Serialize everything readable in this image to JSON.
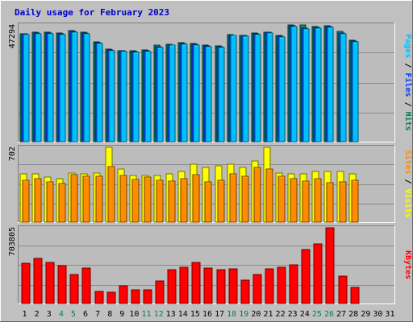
{
  "chart_data": {
    "type": "bar",
    "title": "Daily usage for February 2023",
    "colors": {
      "frame_bg": "#c0c0c0",
      "plot_bg": "#bcbcbc",
      "gridline": "#8a8a8a",
      "title_text": "#0000cc",
      "hits": "#00805c",
      "files": "#0040ff",
      "pages": "#00c0ff",
      "visits": "#ffff00",
      "sites": "#ff8c00",
      "kbytes": "#ff0000",
      "weekend_tick": "#00805c",
      "weekday_tick": "#000000"
    },
    "x_ticks": [
      "1",
      "2",
      "3",
      "4",
      "5",
      "6",
      "7",
      "8",
      "9",
      "10",
      "11",
      "12",
      "13",
      "14",
      "15",
      "16",
      "17",
      "18",
      "19",
      "20",
      "21",
      "22",
      "23",
      "24",
      "25",
      "26",
      "27",
      "28",
      "29",
      "30",
      "31"
    ],
    "weekend_days": [
      4,
      5,
      11,
      12,
      18,
      19,
      25,
      26
    ],
    "panels": [
      {
        "name": "hits_files_pages",
        "ymax_label": "47294",
        "ymax": 47294,
        "side_labels": [
          {
            "text": "Pages",
            "color_key": "pages"
          },
          {
            "text": " / ",
            "color_key": "weekday_tick"
          },
          {
            "text": "Files",
            "color_key": "files"
          },
          {
            "text": " / ",
            "color_key": "weekday_tick"
          },
          {
            "text": "Hits",
            "color_key": "hits"
          }
        ],
        "series": [
          {
            "name": "Hits",
            "color_key": "hits",
            "values": [
              43800,
              44300,
              44200,
              44000,
              44900,
              44300,
              40500,
              37600,
              37000,
              36700,
              37200,
              39300,
              39600,
              40100,
              39900,
              39200,
              38800,
              43500,
              43200,
              43900,
              44500,
              43000,
              47300,
              47294,
              46600,
              47100,
              44600,
              41200
            ]
          },
          {
            "name": "Files",
            "color_key": "files",
            "values": [
              43600,
              44000,
              43900,
              43800,
              44600,
              44000,
              40200,
              37300,
              36700,
              36400,
              36900,
              38500,
              39300,
              39800,
              39600,
              38900,
              38500,
              43200,
              42900,
              43600,
              44200,
              42700,
              46900,
              45900,
              46300,
              46700,
              44100,
              40800
            ]
          },
          {
            "name": "Pages",
            "color_key": "pages",
            "values": [
              43300,
              43700,
              43600,
              43500,
              44300,
              43700,
              39900,
              37000,
              36400,
              36100,
              36600,
              38200,
              39000,
              39500,
              39300,
              38600,
              38200,
              42900,
              42600,
              43300,
              43900,
              42400,
              46600,
              45600,
              46000,
              46400,
              43800,
              40500
            ]
          }
        ]
      },
      {
        "name": "visits_sites",
        "ymax_label": "702",
        "ymax": 702,
        "side_labels": [
          {
            "text": "Sites",
            "color_key": "sites"
          },
          {
            "text": " / ",
            "color_key": "weekday_tick"
          },
          {
            "text": "Visits",
            "color_key": "visits"
          }
        ],
        "series": [
          {
            "name": "Visits",
            "color_key": "visits",
            "values": [
              452,
              452,
              421,
              408,
              463,
              453,
              463,
              702,
              501,
              441,
              441,
              437,
              452,
              478,
              541,
              514,
              532,
              545,
              514,
              574,
              702,
              463,
              452,
              452,
              474,
              478,
              474,
              455
            ]
          },
          {
            "name": "Sites",
            "color_key": "sites",
            "values": [
              391,
              404,
              380,
              365,
              442,
              434,
              433,
              519,
              437,
              399,
              422,
              394,
              386,
              410,
              447,
              380,
              392,
              452,
              432,
              515,
              497,
              428,
              405,
              385,
              410,
              370,
              375,
              390
            ]
          }
        ]
      },
      {
        "name": "kbytes",
        "ymax_label": "703805",
        "ymax": 703805,
        "side_labels": [
          {
            "text": "KBytes",
            "color_key": "kbytes"
          }
        ],
        "series": [
          {
            "name": "KBytes",
            "color_key": "kbytes",
            "values": [
              371000,
              421000,
              384000,
              350000,
              271000,
              326000,
              110000,
              104000,
              165000,
              124000,
              130000,
              206000,
              314000,
              336000,
              380000,
              328000,
              318000,
              319000,
              216000,
              268000,
              319000,
              340000,
              358000,
              498000,
              556000,
              703805,
              258000,
              152000
            ]
          }
        ]
      }
    ]
  }
}
